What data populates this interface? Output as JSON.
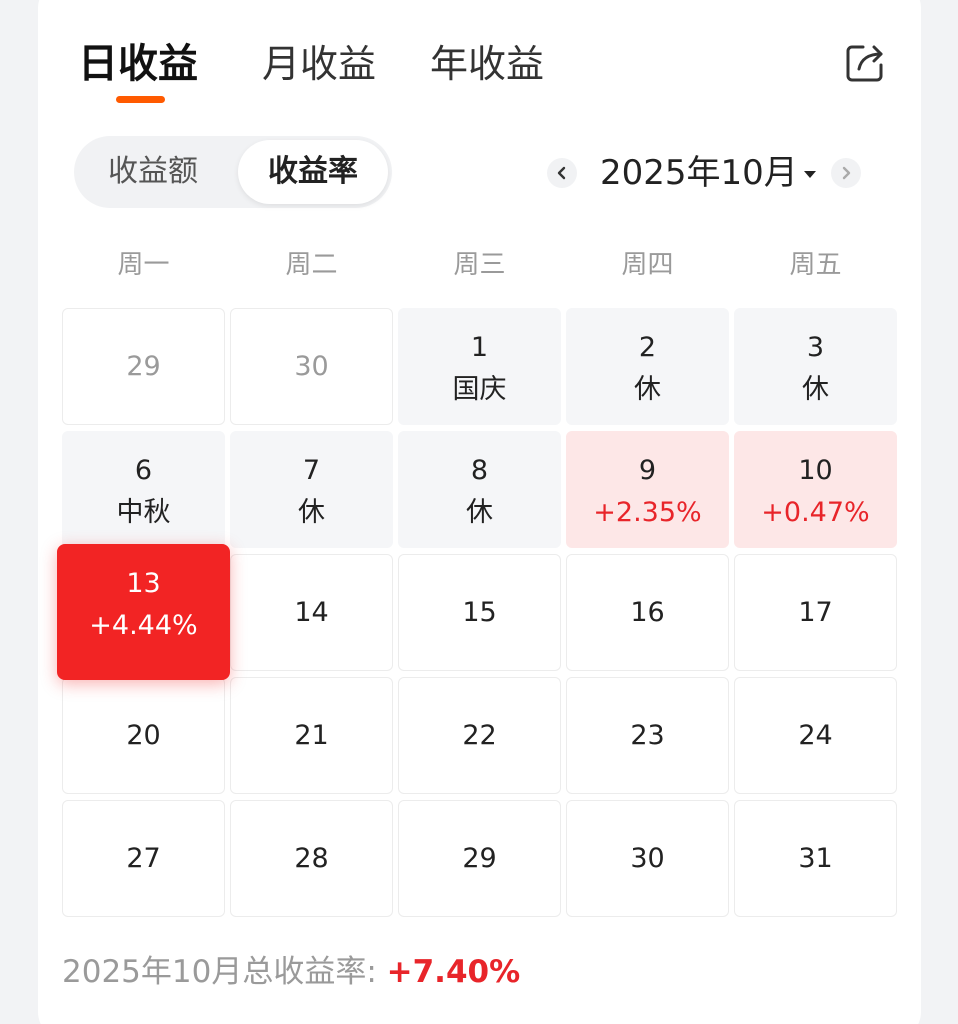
{
  "tabs": [
    {
      "label": "日收益",
      "active": true
    },
    {
      "label": "月收益",
      "active": false
    },
    {
      "label": "年收益",
      "active": false
    }
  ],
  "segment": {
    "left_label": "收益额",
    "right_label": "收益率",
    "selected": "收益率"
  },
  "month_nav": {
    "label": "2025年10月",
    "prev_icon": "chevron-left-icon",
    "next_icon": "chevron-right-icon"
  },
  "weekdays": [
    "周一",
    "周二",
    "周三",
    "周四",
    "周五"
  ],
  "calendar": [
    [
      {
        "day": "29",
        "sub": "",
        "state": "outside"
      },
      {
        "day": "30",
        "sub": "",
        "state": "outside"
      },
      {
        "day": "1",
        "sub": "国庆",
        "state": "holiday"
      },
      {
        "day": "2",
        "sub": "休",
        "state": "holiday"
      },
      {
        "day": "3",
        "sub": "休",
        "state": "holiday"
      }
    ],
    [
      {
        "day": "6",
        "sub": "中秋",
        "state": "holiday"
      },
      {
        "day": "7",
        "sub": "休",
        "state": "holiday"
      },
      {
        "day": "8",
        "sub": "休",
        "state": "holiday"
      },
      {
        "day": "9",
        "sub": "+2.35%",
        "state": "gain-light"
      },
      {
        "day": "10",
        "sub": "+0.47%",
        "state": "gain-light"
      }
    ],
    [
      {
        "day": "13",
        "sub": "+4.44%",
        "state": "gain-strong"
      },
      {
        "day": "14",
        "sub": "",
        "state": "normal"
      },
      {
        "day": "15",
        "sub": "",
        "state": "normal"
      },
      {
        "day": "16",
        "sub": "",
        "state": "normal"
      },
      {
        "day": "17",
        "sub": "",
        "state": "normal"
      }
    ],
    [
      {
        "day": "20",
        "sub": "",
        "state": "normal"
      },
      {
        "day": "21",
        "sub": "",
        "state": "normal"
      },
      {
        "day": "22",
        "sub": "",
        "state": "normal"
      },
      {
        "day": "23",
        "sub": "",
        "state": "normal"
      },
      {
        "day": "24",
        "sub": "",
        "state": "normal"
      }
    ],
    [
      {
        "day": "27",
        "sub": "",
        "state": "normal"
      },
      {
        "day": "28",
        "sub": "",
        "state": "normal"
      },
      {
        "day": "29",
        "sub": "",
        "state": "normal"
      },
      {
        "day": "30",
        "sub": "",
        "state": "normal"
      },
      {
        "day": "31",
        "sub": "",
        "state": "normal"
      }
    ]
  ],
  "summary": {
    "label": "2025年10月总收益率: ",
    "value": "+7.40%"
  },
  "colors": {
    "accent": "#ff5a00",
    "gain": "#e8252a",
    "gain_strong_bg": "#f22424",
    "gain_light_bg": "#fde7e7",
    "holiday_bg": "#f5f6f8"
  },
  "icons": {
    "share": "share-icon"
  }
}
